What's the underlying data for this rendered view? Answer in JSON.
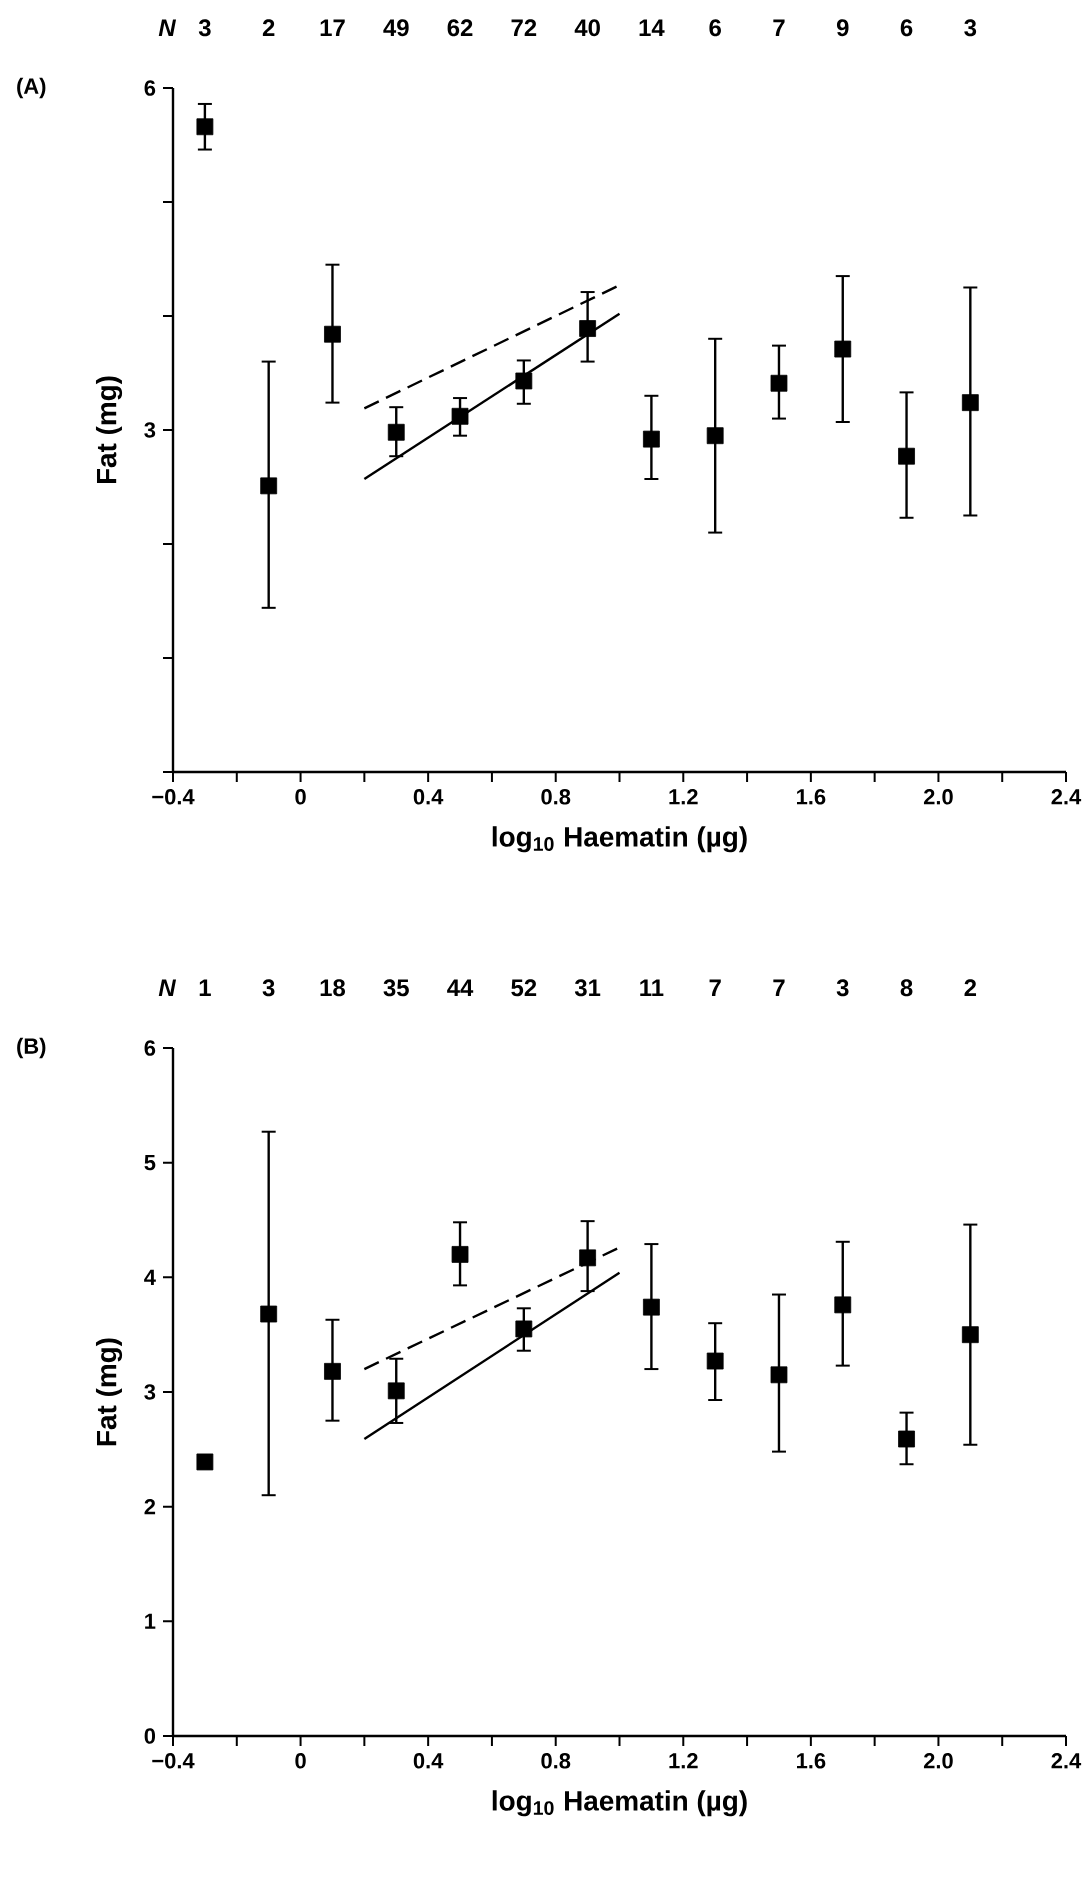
{
  "chart_data": [
    {
      "type": "scatter",
      "title": "(A)",
      "xlabel": "log$_{10}$ Haematin (µg)",
      "ylabel": "Fat (mg)",
      "xlim": [
        -0.4,
        2.4
      ],
      "ylim": [
        0,
        6
      ],
      "xticks": [
        {
          "value": -0.4,
          "label": "−0.4"
        },
        {
          "value": -0.2,
          "label": null
        },
        0,
        {
          "value": 0.2,
          "label": null
        },
        0.4,
        {
          "value": 0.6,
          "label": null
        },
        0.8,
        {
          "value": 1.0,
          "label": null
        },
        1.2,
        {
          "value": 1.4,
          "label": null
        },
        1.6,
        {
          "value": 1.8,
          "label": null
        },
        {
          "value": 2.0,
          "label": "2.0"
        },
        {
          "value": 2.2,
          "label": null
        },
        2.4
      ],
      "yticks": [
        {
          "value": 0,
          "label": null
        },
        {
          "value": 1,
          "label": null
        },
        {
          "value": 2,
          "label": null
        },
        3,
        {
          "value": 4,
          "label": null
        },
        {
          "value": 5,
          "label": null
        },
        6
      ],
      "series": [
        {
          "type": "scatter",
          "marker": "square",
          "color": "#000000",
          "x": [
            -0.3,
            -0.1,
            0.1,
            0.3,
            0.5,
            0.7,
            0.9,
            1.1,
            1.3,
            1.5,
            1.7,
            1.9,
            2.1
          ],
          "values": [
            5.66,
            2.51,
            3.84,
            2.98,
            3.12,
            3.43,
            3.89,
            2.92,
            2.95,
            3.41,
            3.71,
            2.77,
            3.24
          ],
          "errors": [
            [
              5.46,
              5.86
            ],
            [
              1.44,
              3.6
            ],
            [
              3.24,
              4.45
            ],
            [
              2.77,
              3.2
            ],
            [
              2.95,
              3.28
            ],
            [
              3.23,
              3.61
            ],
            [
              3.6,
              4.21
            ],
            [
              2.57,
              3.3
            ],
            [
              2.1,
              3.8
            ],
            [
              3.1,
              3.74
            ],
            [
              3.07,
              4.35
            ],
            [
              2.23,
              3.33
            ],
            [
              2.25,
              4.25
            ]
          ]
        },
        {
          "type": "line",
          "marker": "none",
          "line_style": "solid",
          "color": "#000000",
          "x": [
            0.2,
            1.0
          ],
          "values": [
            2.57,
            4.02
          ]
        },
        {
          "type": "line",
          "marker": "none",
          "line_style": "dashed",
          "color": "#000000",
          "x": [
            0.2,
            1.0
          ],
          "values": [
            3.19,
            4.27
          ]
        }
      ],
      "annotations": [
        "N",
        "3",
        "2",
        "17",
        "49",
        "62",
        "72",
        "40",
        "14",
        "6",
        "7",
        "9",
        "6",
        "3"
      ]
    },
    {
      "type": "scatter",
      "title": "(B)",
      "xlabel": "log$_{10}$ Haematin (µg)",
      "ylabel": "Fat (mg)",
      "xlim": [
        -0.4,
        2.4
      ],
      "ylim": [
        0,
        6
      ],
      "xticks": [
        {
          "value": -0.4,
          "label": "−0.4"
        },
        {
          "value": -0.2,
          "label": null
        },
        0,
        {
          "value": 0.2,
          "label": null
        },
        0.4,
        {
          "value": 0.6,
          "label": null
        },
        0.8,
        {
          "value": 1.0,
          "label": null
        },
        1.2,
        {
          "value": 1.4,
          "label": null
        },
        1.6,
        {
          "value": 1.8,
          "label": null
        },
        {
          "value": 2.0,
          "label": "2.0"
        },
        {
          "value": 2.2,
          "label": null
        },
        2.4
      ],
      "yticks": [
        0,
        1,
        2,
        3,
        4,
        5,
        6
      ],
      "series": [
        {
          "type": "scatter",
          "marker": "square",
          "color": "#000000",
          "x": [
            -0.3,
            -0.1,
            0.1,
            0.3,
            0.5,
            0.7,
            0.9,
            1.1,
            1.3,
            1.5,
            1.7,
            1.9,
            2.1
          ],
          "values": [
            2.39,
            3.68,
            3.18,
            3.01,
            4.2,
            3.55,
            4.17,
            3.74,
            3.27,
            3.15,
            3.76,
            2.59,
            3.5
          ],
          "errors": [
            null,
            [
              2.1,
              5.27
            ],
            [
              2.75,
              3.63
            ],
            [
              2.73,
              3.29
            ],
            [
              3.93,
              4.48
            ],
            [
              3.36,
              3.73
            ],
            [
              3.88,
              4.49
            ],
            [
              3.2,
              4.29
            ],
            [
              2.93,
              3.6
            ],
            [
              2.48,
              3.85
            ],
            [
              3.23,
              4.31
            ],
            [
              2.37,
              2.82
            ],
            [
              2.54,
              4.46
            ]
          ]
        },
        {
          "type": "line",
          "marker": "none",
          "line_style": "solid",
          "color": "#000000",
          "x": [
            0.2,
            1.0
          ],
          "values": [
            2.59,
            4.04
          ]
        },
        {
          "type": "line",
          "marker": "none",
          "line_style": "dashed",
          "color": "#000000",
          "x": [
            0.2,
            1.0
          ],
          "values": [
            3.2,
            4.26
          ]
        }
      ],
      "annotations": [
        "N",
        "1",
        "3",
        "18",
        "35",
        "44",
        "52",
        "31",
        "11",
        "7",
        "7",
        "3",
        "8",
        "2"
      ]
    }
  ]
}
